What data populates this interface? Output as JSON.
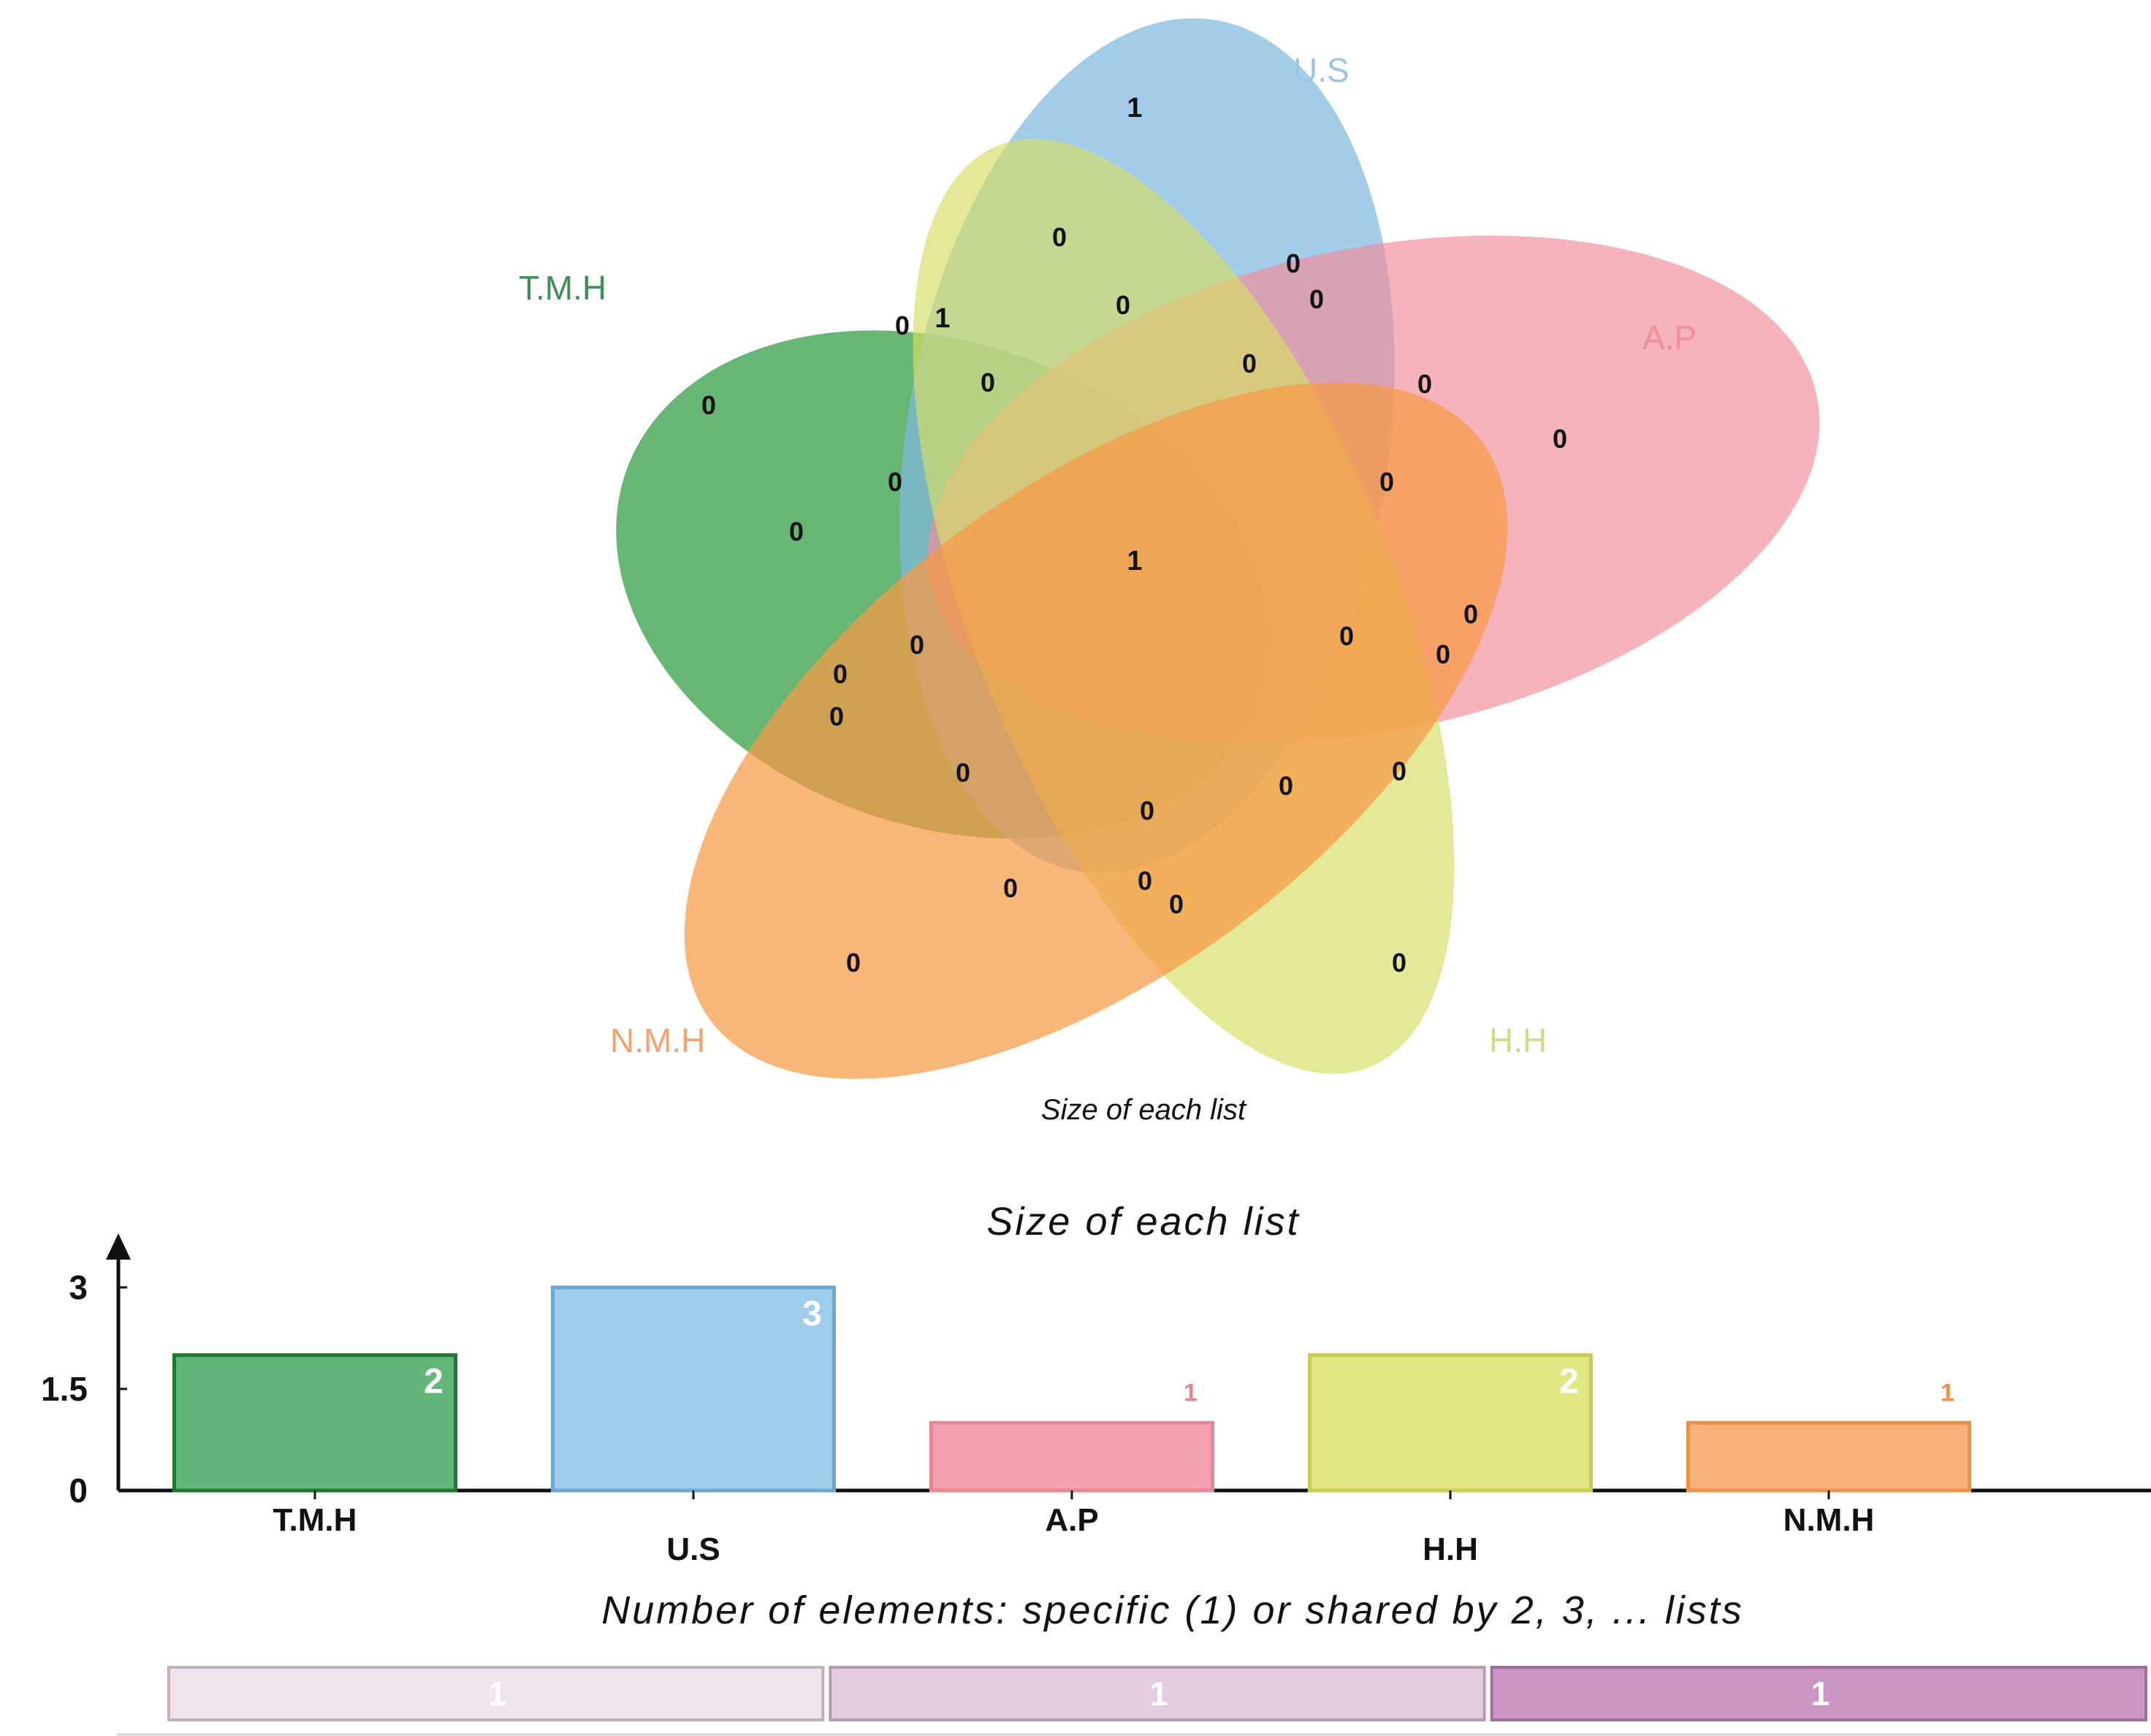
{
  "venn": {
    "sets": [
      {
        "name": "T.M.H",
        "color": "#2E9A3F"
      },
      {
        "name": "U.S",
        "color": "#7FB8E0"
      },
      {
        "name": "A.P",
        "color": "#F38C99"
      },
      {
        "name": "H.H",
        "color": "#D6DE62"
      },
      {
        "name": "N.M.H",
        "color": "#F79A45"
      }
    ],
    "region_counts": [
      {
        "value": "1",
        "emphasis": true
      },
      {
        "value": "0"
      },
      {
        "value": "0"
      },
      {
        "value": "0"
      },
      {
        "value": "0"
      },
      {
        "value": "1",
        "emphasis": true
      },
      {
        "value": "0"
      },
      {
        "value": "0"
      },
      {
        "value": "0"
      },
      {
        "value": "0"
      },
      {
        "value": "0"
      },
      {
        "value": "0"
      },
      {
        "value": "0"
      },
      {
        "value": "0"
      },
      {
        "value": "0"
      },
      {
        "value": "1",
        "emphasis": true
      },
      {
        "value": "0"
      },
      {
        "value": "0"
      },
      {
        "value": "0"
      },
      {
        "value": "0"
      },
      {
        "value": "0"
      },
      {
        "value": "0"
      },
      {
        "value": "0"
      },
      {
        "value": "0"
      },
      {
        "value": "0"
      },
      {
        "value": "0"
      },
      {
        "value": "0"
      },
      {
        "value": "0"
      },
      {
        "value": "0"
      },
      {
        "value": "0"
      },
      {
        "value": "0"
      }
    ],
    "caption": "Size of each list"
  },
  "chart_data": {
    "type": "bar",
    "title": "Size of each list",
    "categories": [
      "T.M.H",
      "U.S",
      "A.P",
      "H.H",
      "N.M.H"
    ],
    "values": [
      2,
      3,
      1,
      2,
      1
    ],
    "value_labels": [
      "2",
      "3",
      "1",
      "2",
      "1"
    ],
    "colors": [
      "#63B57A",
      "#9ECCEB",
      "#F6A2AE",
      "#E2E683",
      "#FAB27A"
    ],
    "edge_colors": [
      "#1E7A30",
      "#6FA6CF",
      "#E98695",
      "#C7CC54",
      "#EE8F4A"
    ],
    "label_colors": [
      "#ffffff",
      "#ffffff",
      "#E9838F",
      "#ffffff",
      "#EE8F4A"
    ],
    "yticks": [
      0,
      1.5,
      3
    ],
    "ytick_labels": [
      "0",
      "1.5",
      "3"
    ],
    "ylim": [
      0,
      3.6
    ],
    "xlabel": "",
    "ylabel": "",
    "grid": false
  },
  "shared_bar": {
    "title": "Number of elements: specific (1) or shared by 2, 3, ... lists",
    "segments": [
      {
        "label": "1",
        "color": "#F1E3EE",
        "edge": "#BFB0BC"
      },
      {
        "label": "1",
        "color": "#E3CCE0",
        "edge": "#B49BAF"
      },
      {
        "label": "1",
        "color": "#C896C1",
        "edge": "#9E6E98"
      }
    ]
  }
}
